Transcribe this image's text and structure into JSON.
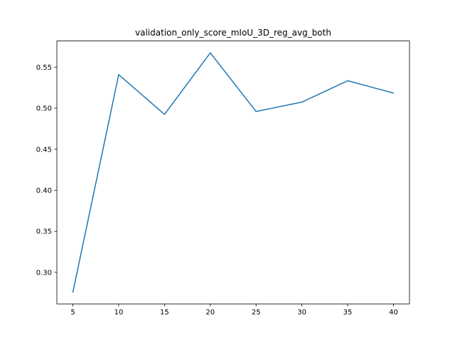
{
  "chart_data": {
    "type": "line",
    "title": "validation_only_score_mIoU_3D_reg_avg_both",
    "xlabel": "",
    "ylabel": "",
    "x": [
      5,
      10,
      15,
      20,
      25,
      30,
      35,
      40
    ],
    "series": [
      {
        "values": [
          0.276,
          0.541,
          0.4925,
          0.5675,
          0.496,
          0.5075,
          0.5335,
          0.5185
        ],
        "color": "#1f77b4"
      }
    ],
    "xlim": [
      3.25,
      41.75
    ],
    "ylim": [
      0.2615,
      0.582
    ],
    "xticks": [
      5,
      10,
      15,
      20,
      25,
      30,
      35,
      40
    ],
    "yticks": [
      0.3,
      0.35,
      0.4,
      0.45,
      0.5,
      0.55
    ],
    "ytick_labels": [
      "0.30",
      "0.35",
      "0.40",
      "0.45",
      "0.50",
      "0.55"
    ],
    "grid": false,
    "legend": "none"
  }
}
